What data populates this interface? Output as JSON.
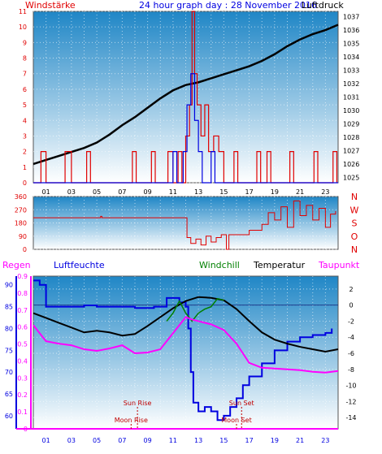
{
  "header": {
    "left": "Windstärke",
    "center": "24 hour graph day : 28 November 2016",
    "right": "Luftdruck"
  },
  "labels": {
    "regen": "Regen",
    "luftfeuchte": "Luftfeuchte",
    "windchill": "Windchill",
    "temperatur": "Temperatur",
    "taupunkt": "Taupunkt",
    "sun_rise": "Sun Rise",
    "sun_set": "Sun Set",
    "moon_rise": "Moon Rise",
    "moon_set": "Moon Set"
  },
  "colors": {
    "wind": "#e00000",
    "gust": "#0000e0",
    "pressure": "#000000",
    "direction": "#e00000",
    "humidity": "#0000e0",
    "temperature": "#000000",
    "windchill": "#008000",
    "dewpoint": "#ff00ff",
    "rain_axis": "#ff00ff",
    "regen_label": "#ff00ff",
    "luftfeuchte_label": "#0000e0",
    "windchill_label": "#008000",
    "temperatur_label": "#000000",
    "taupunkt_label": "#ff00ff",
    "event_label": "#c00000",
    "title_red": "#e00000",
    "title_blue": "#0000e0"
  },
  "chart_data": [
    {
      "type": "line",
      "panel": "wind-pressure",
      "xlabel": "",
      "x_ticks": [
        "01",
        "03",
        "05",
        "07",
        "09",
        "11",
        "13",
        "15",
        "17",
        "19",
        "21",
        "23"
      ],
      "xlim": [
        0,
        24
      ],
      "y_left_label": "Windstärke",
      "y_left_ticks": [
        "0",
        "1",
        "2",
        "3",
        "4",
        "5",
        "6",
        "7",
        "8",
        "9",
        "10",
        "11"
      ],
      "y_left_lim": [
        0,
        11
      ],
      "y_right_label": "Luftdruck",
      "y_right_ticks": [
        "1025",
        "1026",
        "1027",
        "1028",
        "1029",
        "1030",
        "1031",
        "1032",
        "1033",
        "1034",
        "1035",
        "1036",
        "1037"
      ],
      "y_right_lim": [
        1024.6,
        1037.4
      ],
      "grid": true,
      "series": [
        {
          "name": "Luftdruck",
          "axis": "right",
          "color": "#000000",
          "points": [
            [
              0,
              1026.0
            ],
            [
              1,
              1026.3
            ],
            [
              2,
              1026.6
            ],
            [
              3,
              1026.9
            ],
            [
              4,
              1027.2
            ],
            [
              5,
              1027.6
            ],
            [
              6,
              1028.2
            ],
            [
              7,
              1028.9
            ],
            [
              8,
              1029.5
            ],
            [
              9,
              1030.2
            ],
            [
              10,
              1030.9
            ],
            [
              11,
              1031.5
            ],
            [
              12,
              1031.9
            ],
            [
              13,
              1032.1
            ],
            [
              14,
              1032.4
            ],
            [
              15,
              1032.7
            ],
            [
              16,
              1033.0
            ],
            [
              17,
              1033.3
            ],
            [
              18,
              1033.7
            ],
            [
              19,
              1034.2
            ],
            [
              20,
              1034.8
            ],
            [
              21,
              1035.3
            ],
            [
              22,
              1035.7
            ],
            [
              23,
              1036.0
            ],
            [
              24,
              1036.4
            ]
          ]
        },
        {
          "name": "Wind",
          "axis": "left",
          "color": "#e00000",
          "style": "step",
          "points": [
            [
              0,
              0
            ],
            [
              0.6,
              2
            ],
            [
              1.0,
              0
            ],
            [
              2.5,
              2
            ],
            [
              3.0,
              0
            ],
            [
              4.2,
              2
            ],
            [
              4.5,
              0
            ],
            [
              7.8,
              2
            ],
            [
              8.1,
              0
            ],
            [
              9.3,
              2
            ],
            [
              9.6,
              0
            ],
            [
              10.6,
              2
            ],
            [
              11.0,
              0
            ],
            [
              11.4,
              2
            ],
            [
              11.7,
              0
            ],
            [
              12.0,
              3
            ],
            [
              12.3,
              5
            ],
            [
              12.5,
              11
            ],
            [
              12.7,
              7
            ],
            [
              12.9,
              5
            ],
            [
              13.2,
              3
            ],
            [
              13.5,
              5
            ],
            [
              13.8,
              2
            ],
            [
              14.2,
              3
            ],
            [
              14.6,
              2
            ],
            [
              15.0,
              0
            ],
            [
              15.8,
              2
            ],
            [
              16.1,
              0
            ],
            [
              17.6,
              2
            ],
            [
              17.9,
              0
            ],
            [
              18.4,
              2
            ],
            [
              18.7,
              0
            ],
            [
              20.2,
              2
            ],
            [
              20.5,
              0
            ],
            [
              22.1,
              2
            ],
            [
              22.4,
              0
            ],
            [
              23.6,
              2
            ],
            [
              23.9,
              0
            ]
          ]
        },
        {
          "name": "Gust",
          "axis": "left",
          "color": "#0000e0",
          "style": "step",
          "points": [
            [
              0,
              0
            ],
            [
              10.9,
              0
            ],
            [
              11.0,
              2
            ],
            [
              11.3,
              0
            ],
            [
              11.8,
              2
            ],
            [
              12.1,
              5
            ],
            [
              12.4,
              7
            ],
            [
              12.7,
              4
            ],
            [
              13.0,
              2
            ],
            [
              13.3,
              0
            ],
            [
              14.0,
              2
            ],
            [
              14.3,
              0
            ],
            [
              24,
              0
            ]
          ]
        }
      ]
    },
    {
      "type": "line",
      "panel": "wind-direction",
      "xlim": [
        0,
        24
      ],
      "y_ticks": [
        "0",
        "90",
        "180",
        "270",
        "360"
      ],
      "ylim": [
        0,
        360
      ],
      "y_right_ticks": [
        "N",
        "W",
        "S",
        "O",
        "N"
      ],
      "series": [
        {
          "name": "Windrichtung",
          "color": "#e00000",
          "style": "step",
          "points": [
            [
              0,
              215
            ],
            [
              5.2,
              215
            ],
            [
              5.3,
              225
            ],
            [
              5.4,
              215
            ],
            [
              12.0,
              215
            ],
            [
              12.1,
              80
            ],
            [
              12.4,
              40
            ],
            [
              12.8,
              70
            ],
            [
              13.2,
              30
            ],
            [
              13.6,
              90
            ],
            [
              14.0,
              50
            ],
            [
              14.4,
              80
            ],
            [
              14.8,
              100
            ],
            [
              15.2,
              0
            ],
            [
              15.4,
              100
            ],
            [
              16.0,
              100
            ],
            [
              17.0,
              130
            ],
            [
              18.0,
              170
            ],
            [
              18.5,
              250
            ],
            [
              19.0,
              200
            ],
            [
              19.5,
              290
            ],
            [
              20.0,
              150
            ],
            [
              20.5,
              330
            ],
            [
              21.0,
              230
            ],
            [
              21.5,
              300
            ],
            [
              22.0,
              200
            ],
            [
              22.5,
              280
            ],
            [
              23.0,
              150
            ],
            [
              23.4,
              240
            ],
            [
              23.8,
              260
            ]
          ]
        }
      ]
    },
    {
      "type": "line",
      "panel": "humidity-temperature",
      "xlim": [
        0,
        24
      ],
      "x_ticks": [
        "01",
        "03",
        "05",
        "07",
        "09",
        "11",
        "13",
        "15",
        "17",
        "19",
        "21",
        "23"
      ],
      "y_rain_ticks": [
        "0",
        "0.1",
        "0.2",
        "0.3",
        "0.4",
        "0.5",
        "0.6",
        "0.7",
        "0.8",
        "0.9"
      ],
      "y_rain_lim": [
        0,
        0.9
      ],
      "y_humidity_ticks": [
        "60",
        "65",
        "70",
        "75",
        "80",
        "85",
        "90"
      ],
      "y_humidity_lim": [
        57,
        92
      ],
      "y_temp_ticks": [
        "2",
        "0",
        "-2",
        "-4",
        "-6",
        "-8",
        "-10",
        "-12",
        "-14"
      ],
      "y_temp_lim": [
        -15.4,
        3.6
      ],
      "series": [
        {
          "name": "Luftfeuchte",
          "axis": "humidity",
          "color": "#0000e0",
          "style": "step",
          "points": [
            [
              0,
              91
            ],
            [
              0.5,
              90
            ],
            [
              1.0,
              85
            ],
            [
              3.0,
              85
            ],
            [
              4.0,
              85.3
            ],
            [
              5.0,
              85
            ],
            [
              8.0,
              84.7
            ],
            [
              9.5,
              85
            ],
            [
              10.5,
              87
            ],
            [
              11.5,
              86
            ],
            [
              12.0,
              85
            ],
            [
              12.2,
              80
            ],
            [
              12.4,
              70
            ],
            [
              12.6,
              63
            ],
            [
              13.0,
              61
            ],
            [
              13.5,
              62
            ],
            [
              14.0,
              61
            ],
            [
              14.5,
              59
            ],
            [
              15.0,
              60
            ],
            [
              15.5,
              62
            ],
            [
              16.0,
              64
            ],
            [
              16.5,
              67
            ],
            [
              17.0,
              69
            ],
            [
              18.0,
              72
            ],
            [
              19.0,
              75
            ],
            [
              20.0,
              77
            ],
            [
              21.0,
              78
            ],
            [
              22.0,
              78.5
            ],
            [
              23.0,
              79
            ],
            [
              23.5,
              80
            ]
          ]
        },
        {
          "name": "Temperatur",
          "axis": "temp",
          "color": "#000000",
          "points": [
            [
              0,
              -1.0
            ],
            [
              1,
              -1.6
            ],
            [
              2,
              -2.2
            ],
            [
              3,
              -2.8
            ],
            [
              4,
              -3.4
            ],
            [
              5,
              -3.2
            ],
            [
              6,
              -3.4
            ],
            [
              7,
              -3.8
            ],
            [
              8,
              -3.6
            ],
            [
              9,
              -2.6
            ],
            [
              10,
              -1.5
            ],
            [
              11,
              -0.4
            ],
            [
              12,
              0.5
            ],
            [
              13,
              1.0
            ],
            [
              14,
              0.9
            ],
            [
              15,
              0.6
            ],
            [
              16,
              -0.5
            ],
            [
              17,
              -2.0
            ],
            [
              18,
              -3.4
            ],
            [
              19,
              -4.3
            ],
            [
              20,
              -4.8
            ],
            [
              21,
              -5.2
            ],
            [
              22,
              -5.5
            ],
            [
              23,
              -5.8
            ],
            [
              24,
              -5.5
            ]
          ]
        },
        {
          "name": "Windchill",
          "axis": "temp",
          "color": "#008000",
          "points": [
            [
              10.5,
              -2.0
            ],
            [
              11.0,
              -1.0
            ],
            [
              11.5,
              0.5
            ],
            [
              12.0,
              -1.0
            ],
            [
              12.5,
              -2.0
            ],
            [
              13.0,
              -1.0
            ],
            [
              13.5,
              -0.5
            ],
            [
              14.0,
              -0.2
            ],
            [
              14.5,
              0.8
            ],
            [
              15.0,
              0.6
            ]
          ]
        },
        {
          "name": "Taupunkt",
          "axis": "temp",
          "color": "#ff00ff",
          "points": [
            [
              0,
              -2.5
            ],
            [
              1,
              -4.5
            ],
            [
              2,
              -4.8
            ],
            [
              3,
              -5.0
            ],
            [
              4,
              -5.5
            ],
            [
              5,
              -5.7
            ],
            [
              6,
              -5.4
            ],
            [
              7,
              -5.0
            ],
            [
              8,
              -6.0
            ],
            [
              9,
              -5.9
            ],
            [
              10,
              -5.5
            ],
            [
              11,
              -3.5
            ],
            [
              12,
              -1.5
            ],
            [
              12.5,
              -1.8
            ],
            [
              13,
              -2.0
            ],
            [
              14,
              -2.4
            ],
            [
              15,
              -3.1
            ],
            [
              16,
              -4.8
            ],
            [
              17,
              -7.2
            ],
            [
              18,
              -7.8
            ],
            [
              19,
              -7.9
            ],
            [
              20,
              -8.0
            ],
            [
              21,
              -8.1
            ],
            [
              22,
              -8.3
            ],
            [
              23,
              -8.4
            ],
            [
              24,
              -8.2
            ]
          ]
        }
      ],
      "events": [
        {
          "label": "Sun Rise",
          "x": 8.2,
          "row": "upper"
        },
        {
          "label": "Sun Set",
          "x": 16.4,
          "row": "upper"
        },
        {
          "label": "Moon Rise",
          "x": 7.7,
          "row": "lower"
        },
        {
          "label": "Moon Set",
          "x": 16.0,
          "row": "lower"
        }
      ]
    }
  ]
}
